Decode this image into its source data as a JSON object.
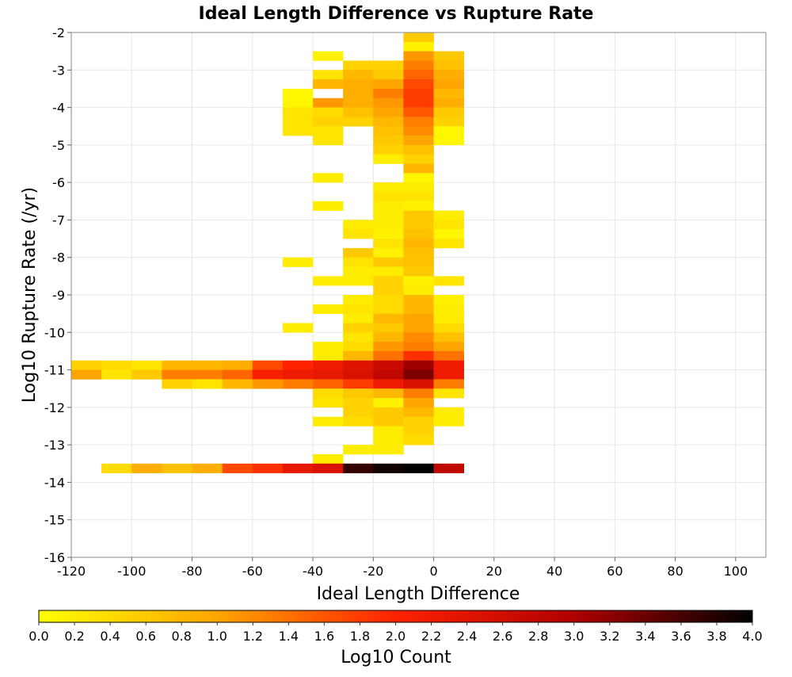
{
  "chart_data": {
    "type": "heatmap",
    "title": "Ideal Length Difference vs Rupture Rate",
    "xlabel": "Ideal Length Difference",
    "ylabel": "Log10 Rupture Rate (/yr)",
    "xlim": [
      -120,
      110
    ],
    "ylim": [
      -16,
      -2
    ],
    "x_ticks": [
      -120,
      -100,
      -80,
      -60,
      -40,
      -20,
      0,
      20,
      40,
      60,
      80,
      100
    ],
    "y_ticks": [
      -2,
      -3,
      -4,
      -5,
      -6,
      -7,
      -8,
      -9,
      -10,
      -11,
      -12,
      -13,
      -14,
      -15,
      -16
    ],
    "x_bin_width": 10,
    "y_bin_width": 0.25,
    "grid": true,
    "colorbar": {
      "label": "Log10 Count",
      "min": 0.0,
      "max": 4.0,
      "ticks": [
        "0.0",
        "0.2",
        "0.4",
        "0.6",
        "0.8",
        "1.0",
        "1.2",
        "1.4",
        "1.6",
        "1.8",
        "2.0",
        "2.2",
        "2.4",
        "2.6",
        "2.8",
        "3.0",
        "3.2",
        "3.4",
        "3.6",
        "3.8",
        "4.0"
      ],
      "colors": [
        "#ffff00",
        "#ffa500",
        "#ff2200",
        "#b00000",
        "#000000"
      ]
    },
    "cells": [
      {
        "x": -10,
        "y": -2.25,
        "v": 0.6
      },
      {
        "x": -10,
        "y": -2.5,
        "v": 0.15
      },
      {
        "x": -10,
        "y": -2.75,
        "v": 1.1
      },
      {
        "x": 0,
        "y": -2.75,
        "v": 0.6
      },
      {
        "x": -40,
        "y": -2.75,
        "v": 0.15
      },
      {
        "x": -30,
        "y": -3.0,
        "v": 0.5
      },
      {
        "x": -20,
        "y": -3.0,
        "v": 0.5
      },
      {
        "x": -10,
        "y": -3.0,
        "v": 1.3
      },
      {
        "x": 0,
        "y": -3.0,
        "v": 0.7
      },
      {
        "x": -40,
        "y": -3.25,
        "v": 0.3
      },
      {
        "x": -30,
        "y": -3.25,
        "v": 0.8
      },
      {
        "x": -20,
        "y": -3.25,
        "v": 0.6
      },
      {
        "x": -10,
        "y": -3.25,
        "v": 1.5
      },
      {
        "x": 0,
        "y": -3.25,
        "v": 0.9
      },
      {
        "x": -40,
        "y": -3.5,
        "v": 0.8
      },
      {
        "x": -30,
        "y": -3.5,
        "v": 0.9
      },
      {
        "x": -20,
        "y": -3.5,
        "v": 1.0
      },
      {
        "x": -10,
        "y": -3.5,
        "v": 1.7
      },
      {
        "x": 0,
        "y": -3.5,
        "v": 1.0
      },
      {
        "x": -50,
        "y": -3.75,
        "v": 0.1
      },
      {
        "x": -30,
        "y": -3.75,
        "v": 0.9
      },
      {
        "x": -20,
        "y": -3.75,
        "v": 1.3
      },
      {
        "x": -10,
        "y": -3.75,
        "v": 1.8
      },
      {
        "x": 0,
        "y": -3.75,
        "v": 0.8
      },
      {
        "x": -50,
        "y": -4.0,
        "v": 0.1
      },
      {
        "x": -40,
        "y": -4.0,
        "v": 1.1
      },
      {
        "x": -30,
        "y": -4.0,
        "v": 0.9
      },
      {
        "x": -20,
        "y": -4.0,
        "v": 1.1
      },
      {
        "x": -10,
        "y": -4.0,
        "v": 1.8
      },
      {
        "x": 0,
        "y": -4.0,
        "v": 0.9
      },
      {
        "x": -50,
        "y": -4.25,
        "v": 0.3
      },
      {
        "x": -40,
        "y": -4.25,
        "v": 0.4
      },
      {
        "x": -30,
        "y": -4.25,
        "v": 0.7
      },
      {
        "x": -20,
        "y": -4.25,
        "v": 1.0
      },
      {
        "x": -10,
        "y": -4.25,
        "v": 1.6
      },
      {
        "x": 0,
        "y": -4.25,
        "v": 0.6
      },
      {
        "x": -50,
        "y": -4.5,
        "v": 0.3
      },
      {
        "x": -40,
        "y": -4.5,
        "v": 0.5
      },
      {
        "x": -30,
        "y": -4.5,
        "v": 0.5
      },
      {
        "x": -20,
        "y": -4.5,
        "v": 0.8
      },
      {
        "x": -10,
        "y": -4.5,
        "v": 1.3
      },
      {
        "x": 0,
        "y": -4.5,
        "v": 0.5
      },
      {
        "x": -50,
        "y": -4.75,
        "v": 0.3
      },
      {
        "x": -40,
        "y": -4.75,
        "v": 0.3
      },
      {
        "x": -20,
        "y": -4.75,
        "v": 0.7
      },
      {
        "x": -10,
        "y": -4.75,
        "v": 1.2
      },
      {
        "x": 0,
        "y": -4.75,
        "v": 0.1
      },
      {
        "x": -40,
        "y": -5.0,
        "v": 0.3
      },
      {
        "x": -20,
        "y": -5.0,
        "v": 0.6
      },
      {
        "x": -10,
        "y": -5.0,
        "v": 1.0
      },
      {
        "x": 0,
        "y": -5.0,
        "v": 0.1
      },
      {
        "x": -20,
        "y": -5.25,
        "v": 0.5
      },
      {
        "x": -10,
        "y": -5.25,
        "v": 0.7
      },
      {
        "x": -20,
        "y": -5.5,
        "v": 0.2
      },
      {
        "x": -10,
        "y": -5.5,
        "v": 0.5
      },
      {
        "x": -10,
        "y": -5.75,
        "v": 0.8
      },
      {
        "x": -40,
        "y": -6.0,
        "v": 0.2
      },
      {
        "x": -10,
        "y": -6.0,
        "v": 0.1
      },
      {
        "x": -20,
        "y": -6.25,
        "v": 0.2
      },
      {
        "x": -10,
        "y": -6.25,
        "v": 0.2
      },
      {
        "x": -20,
        "y": -6.5,
        "v": 0.3
      },
      {
        "x": -10,
        "y": -6.5,
        "v": 0.3
      },
      {
        "x": -40,
        "y": -6.75,
        "v": 0.2
      },
      {
        "x": -20,
        "y": -6.75,
        "v": 0.2
      },
      {
        "x": -10,
        "y": -6.75,
        "v": 0.15
      },
      {
        "x": -20,
        "y": -7.0,
        "v": 0.2
      },
      {
        "x": -10,
        "y": -7.0,
        "v": 0.6
      },
      {
        "x": 0,
        "y": -7.0,
        "v": 0.2
      },
      {
        "x": -30,
        "y": -7.25,
        "v": 0.2
      },
      {
        "x": -20,
        "y": -7.25,
        "v": 0.2
      },
      {
        "x": -10,
        "y": -7.25,
        "v": 0.6
      },
      {
        "x": 0,
        "y": -7.25,
        "v": 0.3
      },
      {
        "x": -30,
        "y": -7.5,
        "v": 0.3
      },
      {
        "x": -20,
        "y": -7.5,
        "v": 0.15
      },
      {
        "x": -10,
        "y": -7.5,
        "v": 0.7
      },
      {
        "x": 0,
        "y": -7.5,
        "v": 0.1
      },
      {
        "x": -20,
        "y": -7.75,
        "v": 0.3
      },
      {
        "x": -10,
        "y": -7.75,
        "v": 0.8
      },
      {
        "x": 0,
        "y": -7.75,
        "v": 0.3
      },
      {
        "x": -30,
        "y": -8.0,
        "v": 0.6
      },
      {
        "x": -20,
        "y": -8.0,
        "v": 0.15
      },
      {
        "x": -10,
        "y": -8.0,
        "v": 0.7
      },
      {
        "x": -50,
        "y": -8.25,
        "v": 0.2
      },
      {
        "x": -30,
        "y": -8.25,
        "v": 0.3
      },
      {
        "x": -20,
        "y": -8.25,
        "v": 0.6
      },
      {
        "x": -10,
        "y": -8.25,
        "v": 0.7
      },
      {
        "x": -30,
        "y": -8.5,
        "v": 0.2
      },
      {
        "x": -20,
        "y": -8.5,
        "v": 0.2
      },
      {
        "x": -10,
        "y": -8.5,
        "v": 0.6
      },
      {
        "x": -40,
        "y": -8.75,
        "v": 0.2
      },
      {
        "x": -30,
        "y": -8.75,
        "v": 0.2
      },
      {
        "x": -20,
        "y": -8.75,
        "v": 0.5
      },
      {
        "x": -10,
        "y": -8.75,
        "v": 0.15
      },
      {
        "x": 0,
        "y": -8.75,
        "v": 0.3
      },
      {
        "x": -20,
        "y": -9.0,
        "v": 0.5
      },
      {
        "x": -10,
        "y": -9.0,
        "v": 0.2
      },
      {
        "x": -30,
        "y": -9.25,
        "v": 0.2
      },
      {
        "x": -20,
        "y": -9.25,
        "v": 0.4
      },
      {
        "x": -10,
        "y": -9.25,
        "v": 0.8
      },
      {
        "x": 0,
        "y": -9.25,
        "v": 0.15
      },
      {
        "x": -40,
        "y": -9.5,
        "v": 0.2
      },
      {
        "x": -30,
        "y": -9.5,
        "v": 0.3
      },
      {
        "x": -20,
        "y": -9.5,
        "v": 0.4
      },
      {
        "x": -10,
        "y": -9.5,
        "v": 0.8
      },
      {
        "x": 0,
        "y": -9.5,
        "v": 0.2
      },
      {
        "x": -30,
        "y": -9.75,
        "v": 0.2
      },
      {
        "x": -20,
        "y": -9.75,
        "v": 0.8
      },
      {
        "x": -10,
        "y": -9.75,
        "v": 1.0
      },
      {
        "x": 0,
        "y": -9.75,
        "v": 0.2
      },
      {
        "x": -50,
        "y": -10.0,
        "v": 0.2
      },
      {
        "x": -30,
        "y": -10.0,
        "v": 0.5
      },
      {
        "x": -20,
        "y": -10.0,
        "v": 0.6
      },
      {
        "x": -10,
        "y": -10.0,
        "v": 1.0
      },
      {
        "x": 0,
        "y": -10.0,
        "v": 0.4
      },
      {
        "x": -30,
        "y": -10.25,
        "v": 0.3
      },
      {
        "x": -20,
        "y": -10.25,
        "v": 0.8
      },
      {
        "x": -10,
        "y": -10.25,
        "v": 1.2
      },
      {
        "x": 0,
        "y": -10.25,
        "v": 0.7
      },
      {
        "x": -40,
        "y": -10.5,
        "v": 0.2
      },
      {
        "x": -30,
        "y": -10.5,
        "v": 0.4
      },
      {
        "x": -20,
        "y": -10.5,
        "v": 1.1
      },
      {
        "x": -10,
        "y": -10.5,
        "v": 1.3
      },
      {
        "x": 0,
        "y": -10.5,
        "v": 1.0
      },
      {
        "x": -40,
        "y": -10.75,
        "v": 0.2
      },
      {
        "x": -30,
        "y": -10.75,
        "v": 0.8
      },
      {
        "x": -20,
        "y": -10.75,
        "v": 1.4
      },
      {
        "x": -10,
        "y": -10.75,
        "v": 1.9
      },
      {
        "x": 0,
        "y": -10.75,
        "v": 1.4
      },
      {
        "x": -120,
        "y": -11.0,
        "v": 0.5
      },
      {
        "x": -110,
        "y": -11.0,
        "v": 0.4
      },
      {
        "x": -100,
        "y": -11.0,
        "v": 0.3
      },
      {
        "x": -90,
        "y": -11.0,
        "v": 0.8
      },
      {
        "x": -80,
        "y": -11.0,
        "v": 0.8
      },
      {
        "x": -70,
        "y": -11.0,
        "v": 0.9
      },
      {
        "x": -60,
        "y": -11.0,
        "v": 1.7
      },
      {
        "x": -50,
        "y": -11.0,
        "v": 2.0
      },
      {
        "x": -40,
        "y": -11.0,
        "v": 2.2
      },
      {
        "x": -30,
        "y": -11.0,
        "v": 2.4
      },
      {
        "x": -20,
        "y": -11.0,
        "v": 2.7
      },
      {
        "x": -10,
        "y": -11.0,
        "v": 3.1
      },
      {
        "x": 0,
        "y": -11.0,
        "v": 2.2
      },
      {
        "x": -120,
        "y": -11.25,
        "v": 1.0
      },
      {
        "x": -110,
        "y": -11.25,
        "v": 0.3
      },
      {
        "x": -100,
        "y": -11.25,
        "v": 0.6
      },
      {
        "x": -90,
        "y": -11.25,
        "v": 1.3
      },
      {
        "x": -80,
        "y": -11.25,
        "v": 1.3
      },
      {
        "x": -70,
        "y": -11.25,
        "v": 1.5
      },
      {
        "x": -60,
        "y": -11.25,
        "v": 2.1
      },
      {
        "x": -50,
        "y": -11.25,
        "v": 2.2
      },
      {
        "x": -40,
        "y": -11.25,
        "v": 2.3
      },
      {
        "x": -30,
        "y": -11.25,
        "v": 2.5
      },
      {
        "x": -20,
        "y": -11.25,
        "v": 2.8
      },
      {
        "x": -10,
        "y": -11.25,
        "v": 3.3
      },
      {
        "x": 0,
        "y": -11.25,
        "v": 2.2
      },
      {
        "x": -90,
        "y": -11.5,
        "v": 0.5
      },
      {
        "x": -80,
        "y": -11.5,
        "v": 0.3
      },
      {
        "x": -70,
        "y": -11.5,
        "v": 0.8
      },
      {
        "x": -60,
        "y": -11.5,
        "v": 1.1
      },
      {
        "x": -50,
        "y": -11.5,
        "v": 1.3
      },
      {
        "x": -40,
        "y": -11.5,
        "v": 1.5
      },
      {
        "x": -30,
        "y": -11.5,
        "v": 1.8
      },
      {
        "x": -20,
        "y": -11.5,
        "v": 2.2
      },
      {
        "x": -10,
        "y": -11.5,
        "v": 2.5
      },
      {
        "x": 0,
        "y": -11.5,
        "v": 1.3
      },
      {
        "x": -40,
        "y": -11.75,
        "v": 0.4
      },
      {
        "x": -30,
        "y": -11.75,
        "v": 0.6
      },
      {
        "x": -20,
        "y": -11.75,
        "v": 0.8
      },
      {
        "x": -10,
        "y": -11.75,
        "v": 1.3
      },
      {
        "x": 0,
        "y": -11.75,
        "v": 0.3
      },
      {
        "x": -40,
        "y": -12.0,
        "v": 0.3
      },
      {
        "x": -30,
        "y": -12.0,
        "v": 0.5
      },
      {
        "x": -20,
        "y": -12.0,
        "v": 0.15
      },
      {
        "x": -10,
        "y": -12.0,
        "v": 1.0
      },
      {
        "x": -30,
        "y": -12.25,
        "v": 0.5
      },
      {
        "x": -20,
        "y": -12.25,
        "v": 0.6
      },
      {
        "x": -10,
        "y": -12.25,
        "v": 0.8
      },
      {
        "x": 0,
        "y": -12.25,
        "v": 0.2
      },
      {
        "x": -40,
        "y": -12.5,
        "v": 0.2
      },
      {
        "x": -30,
        "y": -12.5,
        "v": 0.4
      },
      {
        "x": -20,
        "y": -12.5,
        "v": 0.6
      },
      {
        "x": -10,
        "y": -12.5,
        "v": 0.5
      },
      {
        "x": 0,
        "y": -12.5,
        "v": 0.2
      },
      {
        "x": -20,
        "y": -12.75,
        "v": 0.2
      },
      {
        "x": -10,
        "y": -12.75,
        "v": 0.5
      },
      {
        "x": -20,
        "y": -13.0,
        "v": 0.2
      },
      {
        "x": -10,
        "y": -13.0,
        "v": 0.4
      },
      {
        "x": -30,
        "y": -13.25,
        "v": 0.2
      },
      {
        "x": -20,
        "y": -13.25,
        "v": 0.2
      },
      {
        "x": -40,
        "y": -13.5,
        "v": 0.2
      },
      {
        "x": -110,
        "y": -13.75,
        "v": 0.4
      },
      {
        "x": -100,
        "y": -13.75,
        "v": 0.9
      },
      {
        "x": -90,
        "y": -13.75,
        "v": 0.7
      },
      {
        "x": -80,
        "y": -13.75,
        "v": 0.9
      },
      {
        "x": -70,
        "y": -13.75,
        "v": 1.7
      },
      {
        "x": -60,
        "y": -13.75,
        "v": 1.9
      },
      {
        "x": -50,
        "y": -13.75,
        "v": 2.3
      },
      {
        "x": -40,
        "y": -13.75,
        "v": 2.5
      },
      {
        "x": -30,
        "y": -13.75,
        "v": 3.7
      },
      {
        "x": -20,
        "y": -13.75,
        "v": 3.9
      },
      {
        "x": -10,
        "y": -13.75,
        "v": 4.0
      },
      {
        "x": 0,
        "y": -13.75,
        "v": 2.8
      }
    ]
  }
}
